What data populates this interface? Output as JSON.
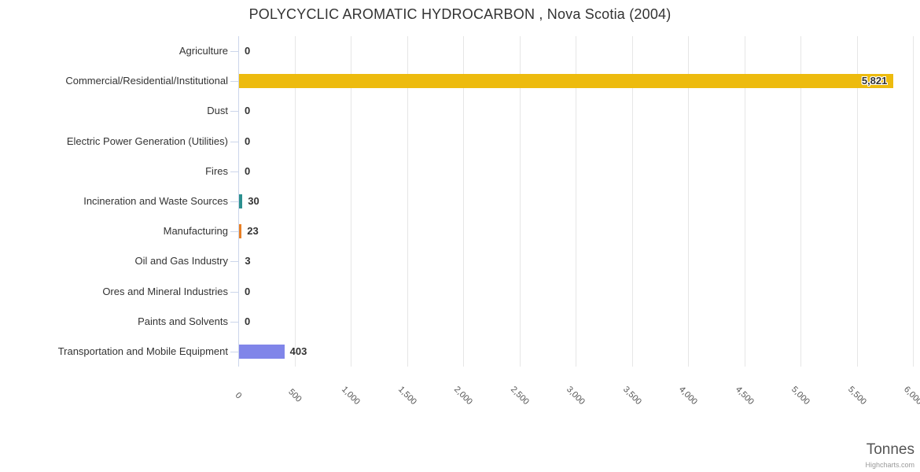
{
  "credit": "Highcharts.com",
  "chart_data": {
    "type": "bar",
    "orientation": "horizontal",
    "title": "POLYCYCLIC AROMATIC HYDROCARBON , Nova Scotia (2004)",
    "xlabel": "Tonnes",
    "ylabel": "",
    "xlim": [
      0,
      6000
    ],
    "tick_interval": 500,
    "grid": true,
    "legend": false,
    "categories": [
      "Agriculture",
      "Commercial/Residential/Institutional",
      "Dust",
      "Electric Power Generation (Utilities)",
      "Fires",
      "Incineration and Waste Sources",
      "Manufacturing",
      "Oil and Gas Industry",
      "Ores and Mineral Industries",
      "Paints and Solvents",
      "Transportation and Mobile Equipment"
    ],
    "values": [
      0,
      5821,
      0,
      0,
      0,
      30,
      23,
      3,
      0,
      0,
      403
    ],
    "value_labels": [
      "0",
      "5,821",
      "0",
      "0",
      "0",
      "30",
      "23",
      "3",
      "0",
      "0",
      "403"
    ],
    "bar_colors": [
      null,
      "#edbb0e",
      null,
      null,
      null,
      "#2b908f",
      "#e87f25",
      null,
      null,
      null,
      "#8085e9"
    ],
    "x_ticks": [
      "0",
      "500",
      "1,000",
      "1,500",
      "2,000",
      "2,500",
      "3,000",
      "3,500",
      "4,000",
      "4,500",
      "5,000",
      "5,500",
      "6,000"
    ],
    "style": {
      "title_color": "#333333",
      "category_label_color": "#333333",
      "value_label_color": "#333333",
      "axis_tick_label_color": "#555555",
      "axis_title_color": "#555555",
      "grid_color": "#e6e6e6",
      "axis_line_color": "#ccd6eb",
      "tick_color": "#ccd6eb",
      "credit_color": "#999999",
      "background_color": "#ffffff"
    }
  }
}
